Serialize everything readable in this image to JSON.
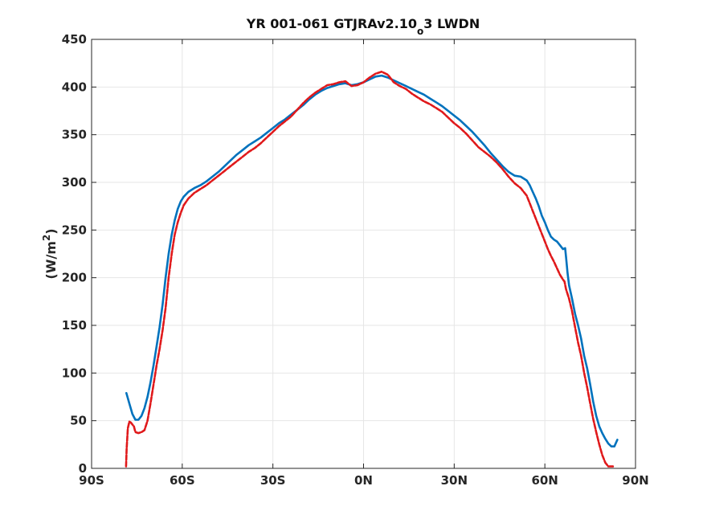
{
  "chart_data": {
    "type": "line",
    "title": {
      "main": "YR 001-061 GTJRAv2.10",
      "subscript": "o",
      "rest": "3 LWDN"
    },
    "xlabel": "",
    "ylabel": {
      "text": "(W/m",
      "superscript": "2",
      "close": ")"
    },
    "xlim": [
      -90,
      90
    ],
    "ylim": [
      0,
      450
    ],
    "grid": true,
    "x_ticks": [
      {
        "value": -90,
        "label": "90S"
      },
      {
        "value": -60,
        "label": "60S"
      },
      {
        "value": -30,
        "label": "30S"
      },
      {
        "value": 0,
        "label": "0N"
      },
      {
        "value": 30,
        "label": "30N"
      },
      {
        "value": 60,
        "label": "60N"
      },
      {
        "value": 90,
        "label": "90N"
      }
    ],
    "y_ticks": [
      0,
      50,
      100,
      150,
      200,
      250,
      300,
      350,
      400,
      450
    ],
    "series": [
      {
        "color": "#0072bd",
        "style": "solid",
        "points": [
          [
            -78.5,
            79
          ],
          [
            -77.5,
            68
          ],
          [
            -76.5,
            57
          ],
          [
            -75.5,
            51
          ],
          [
            -74.5,
            51
          ],
          [
            -73.5,
            55
          ],
          [
            -72.5,
            63
          ],
          [
            -71.5,
            75
          ],
          [
            -70.5,
            90
          ],
          [
            -69.5,
            108
          ],
          [
            -68.5,
            128
          ],
          [
            -67.5,
            148
          ],
          [
            -66.5,
            172
          ],
          [
            -65.5,
            200
          ],
          [
            -64.5,
            225
          ],
          [
            -63.5,
            245
          ],
          [
            -62.5,
            260
          ],
          [
            -61.5,
            272
          ],
          [
            -60.5,
            280
          ],
          [
            -59.5,
            285
          ],
          [
            -58,
            290
          ],
          [
            -56,
            294
          ],
          [
            -54,
            297
          ],
          [
            -52,
            301
          ],
          [
            -50,
            306
          ],
          [
            -48,
            311
          ],
          [
            -46,
            317
          ],
          [
            -44,
            323
          ],
          [
            -42,
            329
          ],
          [
            -40,
            334
          ],
          [
            -38,
            339
          ],
          [
            -36,
            343
          ],
          [
            -34,
            347
          ],
          [
            -32,
            352
          ],
          [
            -30,
            357
          ],
          [
            -28,
            362
          ],
          [
            -26,
            366
          ],
          [
            -24,
            371
          ],
          [
            -22,
            376
          ],
          [
            -20,
            381
          ],
          [
            -18,
            387
          ],
          [
            -16,
            392
          ],
          [
            -14,
            396
          ],
          [
            -12,
            399
          ],
          [
            -10,
            401
          ],
          [
            -8,
            403
          ],
          [
            -6,
            404
          ],
          [
            -4,
            402
          ],
          [
            -2,
            403
          ],
          [
            0,
            405
          ],
          [
            2,
            408
          ],
          [
            4,
            411
          ],
          [
            6,
            412
          ],
          [
            8,
            410
          ],
          [
            10,
            407
          ],
          [
            12,
            404
          ],
          [
            14,
            401
          ],
          [
            16,
            398
          ],
          [
            18,
            395
          ],
          [
            20,
            392
          ],
          [
            22,
            388
          ],
          [
            24,
            384
          ],
          [
            26,
            380
          ],
          [
            28,
            375
          ],
          [
            30,
            370
          ],
          [
            32,
            365
          ],
          [
            34,
            359
          ],
          [
            36,
            353
          ],
          [
            38,
            346
          ],
          [
            40,
            339
          ],
          [
            42,
            331
          ],
          [
            44,
            324
          ],
          [
            46,
            317
          ],
          [
            48,
            311
          ],
          [
            50,
            307
          ],
          [
            52,
            306
          ],
          [
            54,
            302
          ],
          [
            55,
            297
          ],
          [
            56,
            290
          ],
          [
            57,
            283
          ],
          [
            58,
            275
          ],
          [
            59,
            265
          ],
          [
            60,
            258
          ],
          [
            61,
            250
          ],
          [
            62,
            243
          ],
          [
            63,
            240
          ],
          [
            64,
            238
          ],
          [
            65,
            234
          ],
          [
            66,
            230
          ],
          [
            66.7,
            231
          ],
          [
            67,
            222
          ],
          [
            67.5,
            205
          ],
          [
            68,
            192
          ],
          [
            69,
            178
          ],
          [
            70,
            162
          ],
          [
            71,
            150
          ],
          [
            72,
            136
          ],
          [
            73,
            118
          ],
          [
            74,
            105
          ],
          [
            75,
            88
          ],
          [
            76,
            70
          ],
          [
            77,
            55
          ],
          [
            78,
            44
          ],
          [
            79,
            37
          ],
          [
            80,
            31
          ],
          [
            81,
            26
          ],
          [
            82,
            23
          ],
          [
            83,
            23
          ],
          [
            84,
            30
          ]
        ]
      },
      {
        "color": "#e0191b",
        "style": "dashed",
        "points": [
          [
            -78.6,
            2
          ],
          [
            -78.4,
            20
          ],
          [
            -78,
            42
          ],
          [
            -77.5,
            49
          ],
          [
            -77,
            48
          ],
          [
            -76,
            44
          ],
          [
            -75.5,
            38
          ],
          [
            -74.5,
            37
          ],
          [
            -73.5,
            38
          ],
          [
            -72.5,
            40
          ],
          [
            -71.5,
            50
          ],
          [
            -70.5,
            68
          ],
          [
            -69.5,
            88
          ],
          [
            -68.5,
            108
          ],
          [
            -67.5,
            125
          ],
          [
            -66.5,
            145
          ],
          [
            -65.5,
            168
          ],
          [
            -64.5,
            200
          ],
          [
            -63.5,
            225
          ],
          [
            -62.5,
            245
          ],
          [
            -61.5,
            258
          ],
          [
            -60.5,
            268
          ],
          [
            -59.5,
            276
          ],
          [
            -58,
            283
          ],
          [
            -56,
            289
          ],
          [
            -54,
            293
          ],
          [
            -52,
            297
          ],
          [
            -50,
            302
          ],
          [
            -48,
            307
          ],
          [
            -46,
            312
          ],
          [
            -44,
            317
          ],
          [
            -42,
            322
          ],
          [
            -40,
            327
          ],
          [
            -38,
            332
          ],
          [
            -36,
            336
          ],
          [
            -34,
            341
          ],
          [
            -32,
            347
          ],
          [
            -30,
            353
          ],
          [
            -28,
            359
          ],
          [
            -26,
            364
          ],
          [
            -24,
            369
          ],
          [
            -22,
            376
          ],
          [
            -20,
            383
          ],
          [
            -18,
            389
          ],
          [
            -16,
            394
          ],
          [
            -14,
            398
          ],
          [
            -12,
            402
          ],
          [
            -10,
            403
          ],
          [
            -8,
            405
          ],
          [
            -6,
            406
          ],
          [
            -4,
            401
          ],
          [
            -2,
            402
          ],
          [
            0,
            405
          ],
          [
            2,
            410
          ],
          [
            4,
            414
          ],
          [
            6,
            416
          ],
          [
            8,
            413
          ],
          [
            10,
            405
          ],
          [
            12,
            401
          ],
          [
            14,
            398
          ],
          [
            16,
            393
          ],
          [
            18,
            389
          ],
          [
            20,
            385
          ],
          [
            22,
            382
          ],
          [
            24,
            378
          ],
          [
            26,
            374
          ],
          [
            28,
            368
          ],
          [
            30,
            362
          ],
          [
            32,
            357
          ],
          [
            34,
            351
          ],
          [
            36,
            344
          ],
          [
            38,
            337
          ],
          [
            40,
            332
          ],
          [
            42,
            327
          ],
          [
            44,
            321
          ],
          [
            46,
            314
          ],
          [
            48,
            306
          ],
          [
            50,
            299
          ],
          [
            52,
            294
          ],
          [
            54,
            286
          ],
          [
            55,
            278
          ],
          [
            56,
            270
          ],
          [
            57,
            262
          ],
          [
            58,
            254
          ],
          [
            59,
            246
          ],
          [
            60,
            238
          ],
          [
            61,
            230
          ],
          [
            62,
            223
          ],
          [
            63,
            217
          ],
          [
            64,
            210
          ],
          [
            65,
            203
          ],
          [
            66,
            198
          ],
          [
            66.5,
            196
          ],
          [
            67,
            188
          ],
          [
            68,
            178
          ],
          [
            69,
            165
          ],
          [
            70,
            148
          ],
          [
            71,
            132
          ],
          [
            72,
            118
          ],
          [
            73,
            100
          ],
          [
            74,
            85
          ],
          [
            75,
            68
          ],
          [
            76,
            52
          ],
          [
            77,
            38
          ],
          [
            78,
            25
          ],
          [
            79,
            14
          ],
          [
            80,
            6
          ],
          [
            81,
            2
          ],
          [
            82,
            2
          ],
          [
            83,
            2
          ]
        ]
      }
    ]
  }
}
